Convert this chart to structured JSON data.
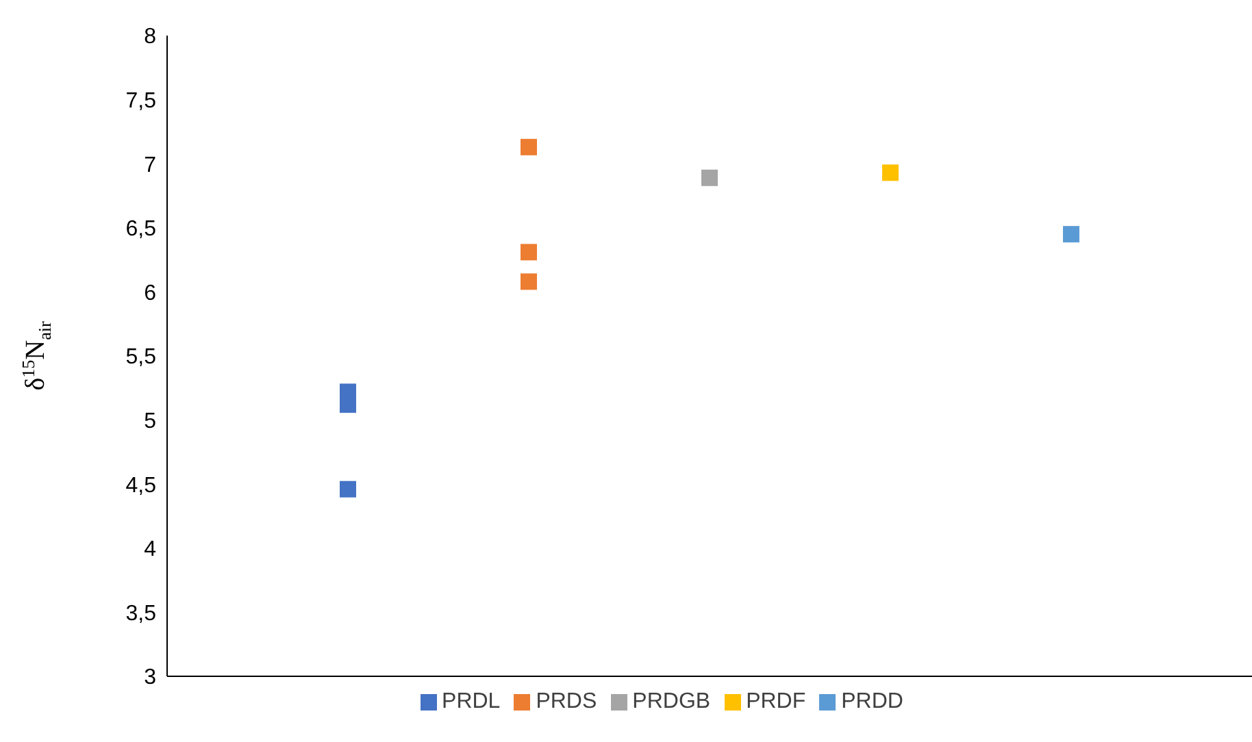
{
  "chart_data": {
    "type": "scatter",
    "ylabel": "δ$^{15}$N$_{air}$",
    "categories": [
      null,
      null,
      null,
      null,
      null,
      null,
      null
    ],
    "ylim": [
      3,
      8
    ],
    "yticks": [
      3,
      {
        "value": 3.5,
        "label": "3,5"
      },
      4,
      {
        "value": 4.5,
        "label": "4,5"
      },
      5,
      {
        "value": 5.5,
        "label": "5,5"
      },
      6,
      {
        "value": 6.5,
        "label": "6,5"
      },
      7,
      {
        "value": 7.5,
        "label": "7,5"
      },
      8
    ],
    "grid": false,
    "legend": "bottom",
    "marker": "square",
    "series": [
      {
        "name": "PRDL",
        "color": "#4472c4",
        "values": [
          null,
          5.22,
          null,
          null,
          null,
          null,
          null
        ]
      },
      {
        "color": "#4472c4",
        "values": [
          null,
          5.12,
          null,
          null,
          null,
          null,
          null
        ]
      },
      {
        "color": "#4472c4",
        "values": [
          null,
          4.46,
          null,
          null,
          null,
          null,
          null
        ]
      },
      {
        "name": "PRDS",
        "color": "#ed7d31",
        "values": [
          null,
          null,
          7.13,
          null,
          null,
          null,
          null
        ]
      },
      {
        "color": "#ed7d31",
        "values": [
          null,
          null,
          6.31,
          null,
          null,
          null,
          null
        ]
      },
      {
        "color": "#ed7d31",
        "values": [
          null,
          null,
          6.08,
          null,
          null,
          null,
          null
        ]
      },
      {
        "name": "PRDGB",
        "color": "#a5a5a5",
        "values": [
          null,
          null,
          null,
          6.89,
          null,
          null,
          null
        ]
      },
      {
        "name": "PRDF",
        "color": "#ffc000",
        "values": [
          null,
          null,
          null,
          null,
          6.93,
          null,
          null
        ]
      },
      {
        "name": "PRDD",
        "color": "#5b9bd5",
        "values": [
          null,
          null,
          null,
          null,
          null,
          6.45,
          null
        ]
      }
    ]
  }
}
